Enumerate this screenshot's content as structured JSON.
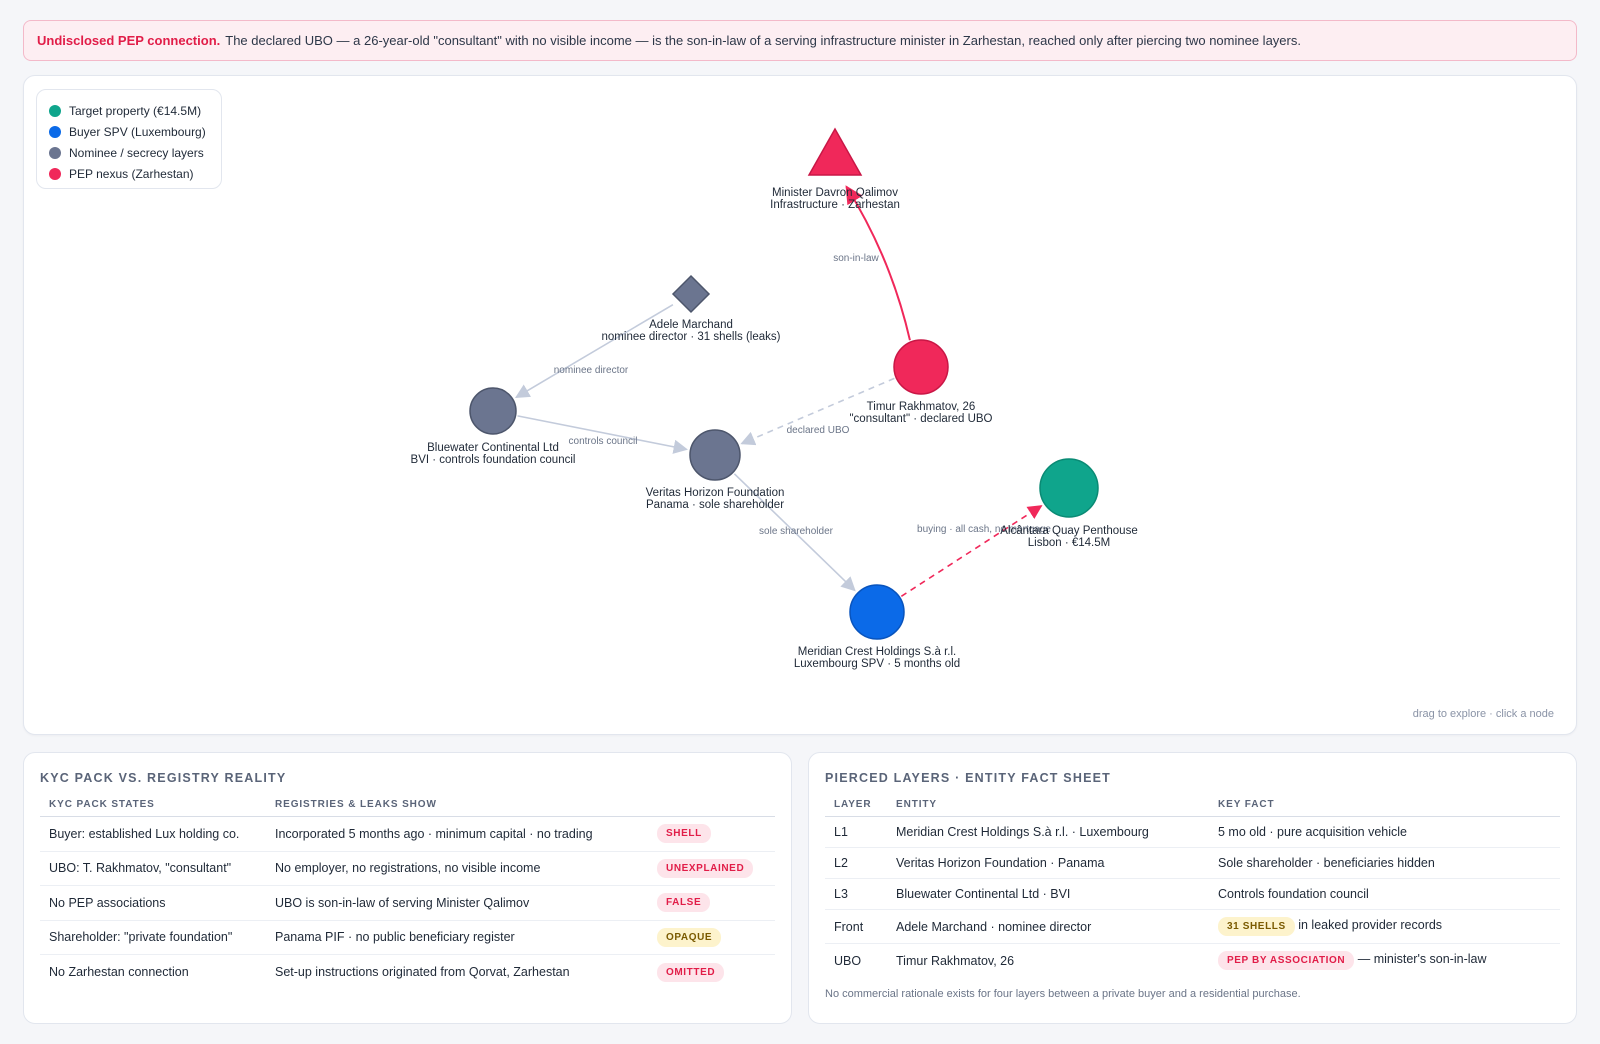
{
  "alert": {
    "title": "Undisclosed PEP connection.",
    "text": "The declared UBO — a 26-year-old \"consultant\" with no visible income — is the son-in-law of a serving infrastructure minister in Zarhestan, reached only after piercing two nominee layers."
  },
  "legend": [
    {
      "label": "Target property (€14.5M)",
      "color": "#0fa58c"
    },
    {
      "label": "Buyer SPV (Luxembourg)",
      "color": "#0b6ae8"
    },
    {
      "label": "Nominee / secrecy layers",
      "color": "#6b7590"
    },
    {
      "label": "PEP nexus (Zarhestan)",
      "color": "#f0285a"
    }
  ],
  "graph": {
    "hint": "drag to explore · click a node",
    "nodes": [
      {
        "id": "minister",
        "shape": "triangle",
        "group": "pep",
        "line1": "Minister Davron Qalimov",
        "line2": "Infrastructure · Zarhestan"
      },
      {
        "id": "marchand",
        "shape": "diamond",
        "group": "nominee",
        "line1": "Adele Marchand",
        "line2": "nominee director · 31 shells (leaks)"
      },
      {
        "id": "timur",
        "shape": "circle",
        "group": "pep",
        "line1": "Timur Rakhmatov, 26",
        "line2": "\"consultant\" · declared UBO"
      },
      {
        "id": "bluewater",
        "shape": "circle",
        "group": "nominee",
        "line1": "Bluewater Continental Ltd",
        "line2": "BVI · controls foundation council"
      },
      {
        "id": "veritas",
        "shape": "circle",
        "group": "nominee",
        "line1": "Veritas Horizon Foundation",
        "line2": "Panama · sole shareholder"
      },
      {
        "id": "alcantara",
        "shape": "circle",
        "group": "target",
        "line1": "Alcântara Quay Penthouse",
        "line2": "Lisbon · €14.5M"
      },
      {
        "id": "meridian",
        "shape": "circle",
        "group": "buyer",
        "line1": "Meridian Crest Holdings S.à r.l.",
        "line2": "Luxembourg SPV · 5 months old"
      }
    ],
    "edges": [
      {
        "from": "timur",
        "to": "minister",
        "label": "son-in-law",
        "style": "pep"
      },
      {
        "from": "marchand",
        "to": "bluewater",
        "label": "nominee director",
        "style": "plain"
      },
      {
        "from": "bluewater",
        "to": "veritas",
        "label": "controls council",
        "style": "plain"
      },
      {
        "from": "timur",
        "to": "veritas",
        "label": "declared UBO",
        "style": "dashed"
      },
      {
        "from": "veritas",
        "to": "meridian",
        "label": "sole shareholder",
        "style": "plain"
      },
      {
        "from": "meridian",
        "to": "alcantara",
        "label": "buying · all cash, no mortgage",
        "style": "pep-dashed"
      }
    ]
  },
  "kyc": {
    "title": "KYC pack vs. registry reality",
    "headers": [
      "KYC pack states",
      "Registries & leaks show",
      ""
    ],
    "rows": [
      {
        "claim": "Buyer: established Lux holding co.",
        "reality": "Incorporated 5 months ago · minimum capital · no trading",
        "badge": "SHELL",
        "tone": "red"
      },
      {
        "claim": "UBO: T. Rakhmatov, \"consultant\"",
        "reality": "No employer, no registrations, no visible income",
        "badge": "UNEXPLAINED",
        "tone": "red"
      },
      {
        "claim": "No PEP associations",
        "reality": "UBO is son-in-law of serving Minister Qalimov",
        "badge": "FALSE",
        "tone": "red"
      },
      {
        "claim": "Shareholder: \"private foundation\"",
        "reality": "Panama PIF · no public beneficiary register",
        "badge": "OPAQUE",
        "tone": "amber"
      },
      {
        "claim": "No Zarhestan connection",
        "reality": "Set-up instructions originated from Qorvat, Zarhestan",
        "badge": "OMITTED",
        "tone": "red"
      }
    ]
  },
  "layers": {
    "title": "Pierced layers · entity fact sheet",
    "headers": [
      "Layer",
      "Entity",
      "Key fact"
    ],
    "rows": [
      {
        "layer": "L1",
        "entity": "Meridian Crest Holdings S.à r.l. · Luxembourg",
        "badge": "",
        "tone": "",
        "fact": "5 mo old · pure acquisition vehicle"
      },
      {
        "layer": "L2",
        "entity": "Veritas Horizon Foundation · Panama",
        "badge": "",
        "tone": "",
        "fact": "Sole shareholder · beneficiaries hidden"
      },
      {
        "layer": "L3",
        "entity": "Bluewater Continental Ltd · BVI",
        "badge": "",
        "tone": "",
        "fact": "Controls foundation council"
      },
      {
        "layer": "Front",
        "entity": "Adele Marchand · nominee director",
        "badge": "31 SHELLS",
        "tone": "amber",
        "fact": "in leaked provider records"
      },
      {
        "layer": "UBO",
        "entity": "Timur Rakhmatov, 26",
        "badge": "PEP BY ASSOCIATION",
        "tone": "red",
        "fact": "— minister's son-in-law"
      }
    ],
    "footnote": "No commercial rationale exists for four layers between a private buyer and a residential purchase."
  }
}
